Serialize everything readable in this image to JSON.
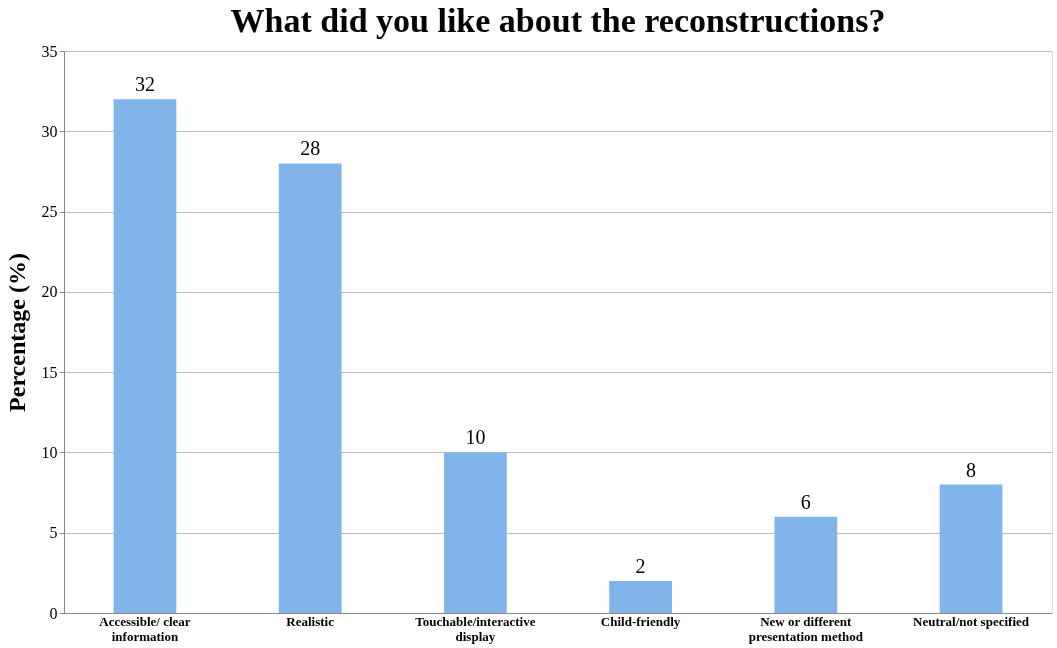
{
  "chart_data": {
    "type": "bar",
    "title": "What did you like about the reconstructions?",
    "ylabel": "Percentage (%)",
    "categories": [
      "Accessible/ clear information",
      "Realistic",
      "Touchable/interactive display",
      "Child-friendly",
      "New or different presentation method",
      "Neutral/not specified"
    ],
    "values": [
      32,
      28,
      10,
      2,
      6,
      8
    ],
    "color": "#82b4ec",
    "ylim": [
      0,
      35
    ],
    "yticks": [
      0,
      5,
      10,
      15,
      20,
      25,
      30,
      35
    ],
    "grid": "y",
    "data_labels": true
  }
}
